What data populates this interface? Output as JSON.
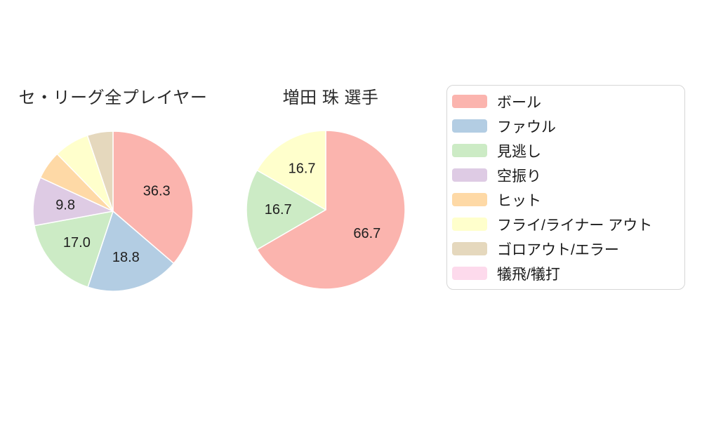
{
  "canvas": {
    "background": "#ffffff"
  },
  "palette": {
    "ball": "#fbb4ae",
    "foul": "#b3cde3",
    "called_strike": "#ccebc5",
    "swinging_strike": "#decbe4",
    "hit": "#fed9a6",
    "fly_liner_out": "#ffffcc",
    "ground_out_error": "#e5d8bd",
    "sacrifice": "#fddaec"
  },
  "legend": {
    "items": [
      {
        "label": "ボール",
        "color": "#fbb4ae"
      },
      {
        "label": "ファウル",
        "color": "#b3cde3"
      },
      {
        "label": "見逃し",
        "color": "#ccebc5"
      },
      {
        "label": "空振り",
        "color": "#decbe4"
      },
      {
        "label": "ヒット",
        "color": "#fed9a6"
      },
      {
        "label": "フライ/ライナー アウト",
        "color": "#ffffcc"
      },
      {
        "label": "ゴロアウト/エラー",
        "color": "#e5d8bd"
      },
      {
        "label": "犠飛/犠打",
        "color": "#fddaec"
      }
    ]
  },
  "chart_data": [
    {
      "type": "pie",
      "title": "セ・リーグ全プレイヤー",
      "labels": [
        "ボール",
        "ファウル",
        "見逃し",
        "空振り",
        "ヒット",
        "フライ/ライナー アウト",
        "ゴロアウト/エラー",
        "犠飛/犠打"
      ],
      "values": [
        36.3,
        18.8,
        17.0,
        9.8,
        5.8,
        7.1,
        5.2,
        0
      ],
      "value_labels": [
        "36.3",
        "18.8",
        "17.0",
        "9.8",
        null,
        null,
        null,
        null
      ],
      "colors": [
        "#fbb4ae",
        "#b3cde3",
        "#ccebc5",
        "#decbe4",
        "#fed9a6",
        "#ffffcc",
        "#e5d8bd",
        "#fddaec"
      ],
      "start_angle": "top",
      "direction": "clockwise",
      "slice_border_color": "#ffffff",
      "legend_position": "right"
    },
    {
      "type": "pie",
      "title": "増田 珠 選手",
      "labels": [
        "ボール",
        "見逃し",
        "フライ/ライナー アウト"
      ],
      "values": [
        66.7,
        16.7,
        16.7
      ],
      "value_labels": [
        "66.7",
        "16.7",
        "16.7"
      ],
      "colors": [
        "#fbb4ae",
        "#ccebc5",
        "#ffffcc"
      ],
      "start_angle": "top",
      "direction": "clockwise",
      "slice_border_color": "#ffffff",
      "legend_position": "right"
    }
  ]
}
